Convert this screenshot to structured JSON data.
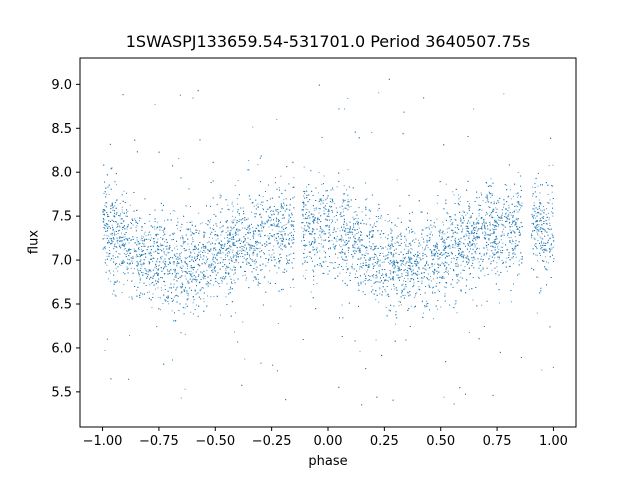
{
  "chart_data": {
    "type": "scatter",
    "title": "1SWASPJ133659.54-531701.0 Period 3640507.75s",
    "xlabel": "phase",
    "ylabel": "flux",
    "xlim": [
      -1.1,
      1.1
    ],
    "ylim": [
      5.1,
      9.3
    ],
    "xticks": [
      -1.0,
      -0.75,
      -0.5,
      -0.25,
      0.0,
      0.25,
      0.5,
      0.75,
      1.0
    ],
    "xtick_labels": [
      "−1.00",
      "−0.75",
      "−0.50",
      "−0.25",
      "0.00",
      "0.25",
      "0.50",
      "0.75",
      "1.00"
    ],
    "yticks": [
      5.5,
      6.0,
      6.5,
      7.0,
      7.5,
      8.0,
      8.5,
      9.0
    ],
    "ytick_labels": [
      "5.5",
      "6.0",
      "6.5",
      "7.0",
      "7.5",
      "8.0",
      "8.5",
      "9.0"
    ],
    "grid": false,
    "marker_color": "#1f77b4",
    "series": [
      {
        "name": "",
        "phase_range": [
          -1.0,
          1.0
        ],
        "envelope": {
          "phase": [
            0.0,
            0.1,
            0.2,
            0.3,
            0.4,
            0.5,
            0.6,
            0.7,
            0.8,
            0.9
          ],
          "median_flux": [
            7.35,
            7.2,
            7.05,
            6.95,
            6.95,
            7.05,
            7.2,
            7.3,
            7.35,
            7.4
          ],
          "core_spread": [
            0.35,
            0.35,
            0.35,
            0.35,
            0.35,
            0.35,
            0.35,
            0.35,
            0.35,
            0.35
          ]
        },
        "phase_gaps": [
          [
            -0.15,
            -0.12
          ],
          [
            0.86,
            0.9
          ]
        ],
        "outlier_flux_range": [
          5.3,
          9.1
        ]
      }
    ]
  }
}
